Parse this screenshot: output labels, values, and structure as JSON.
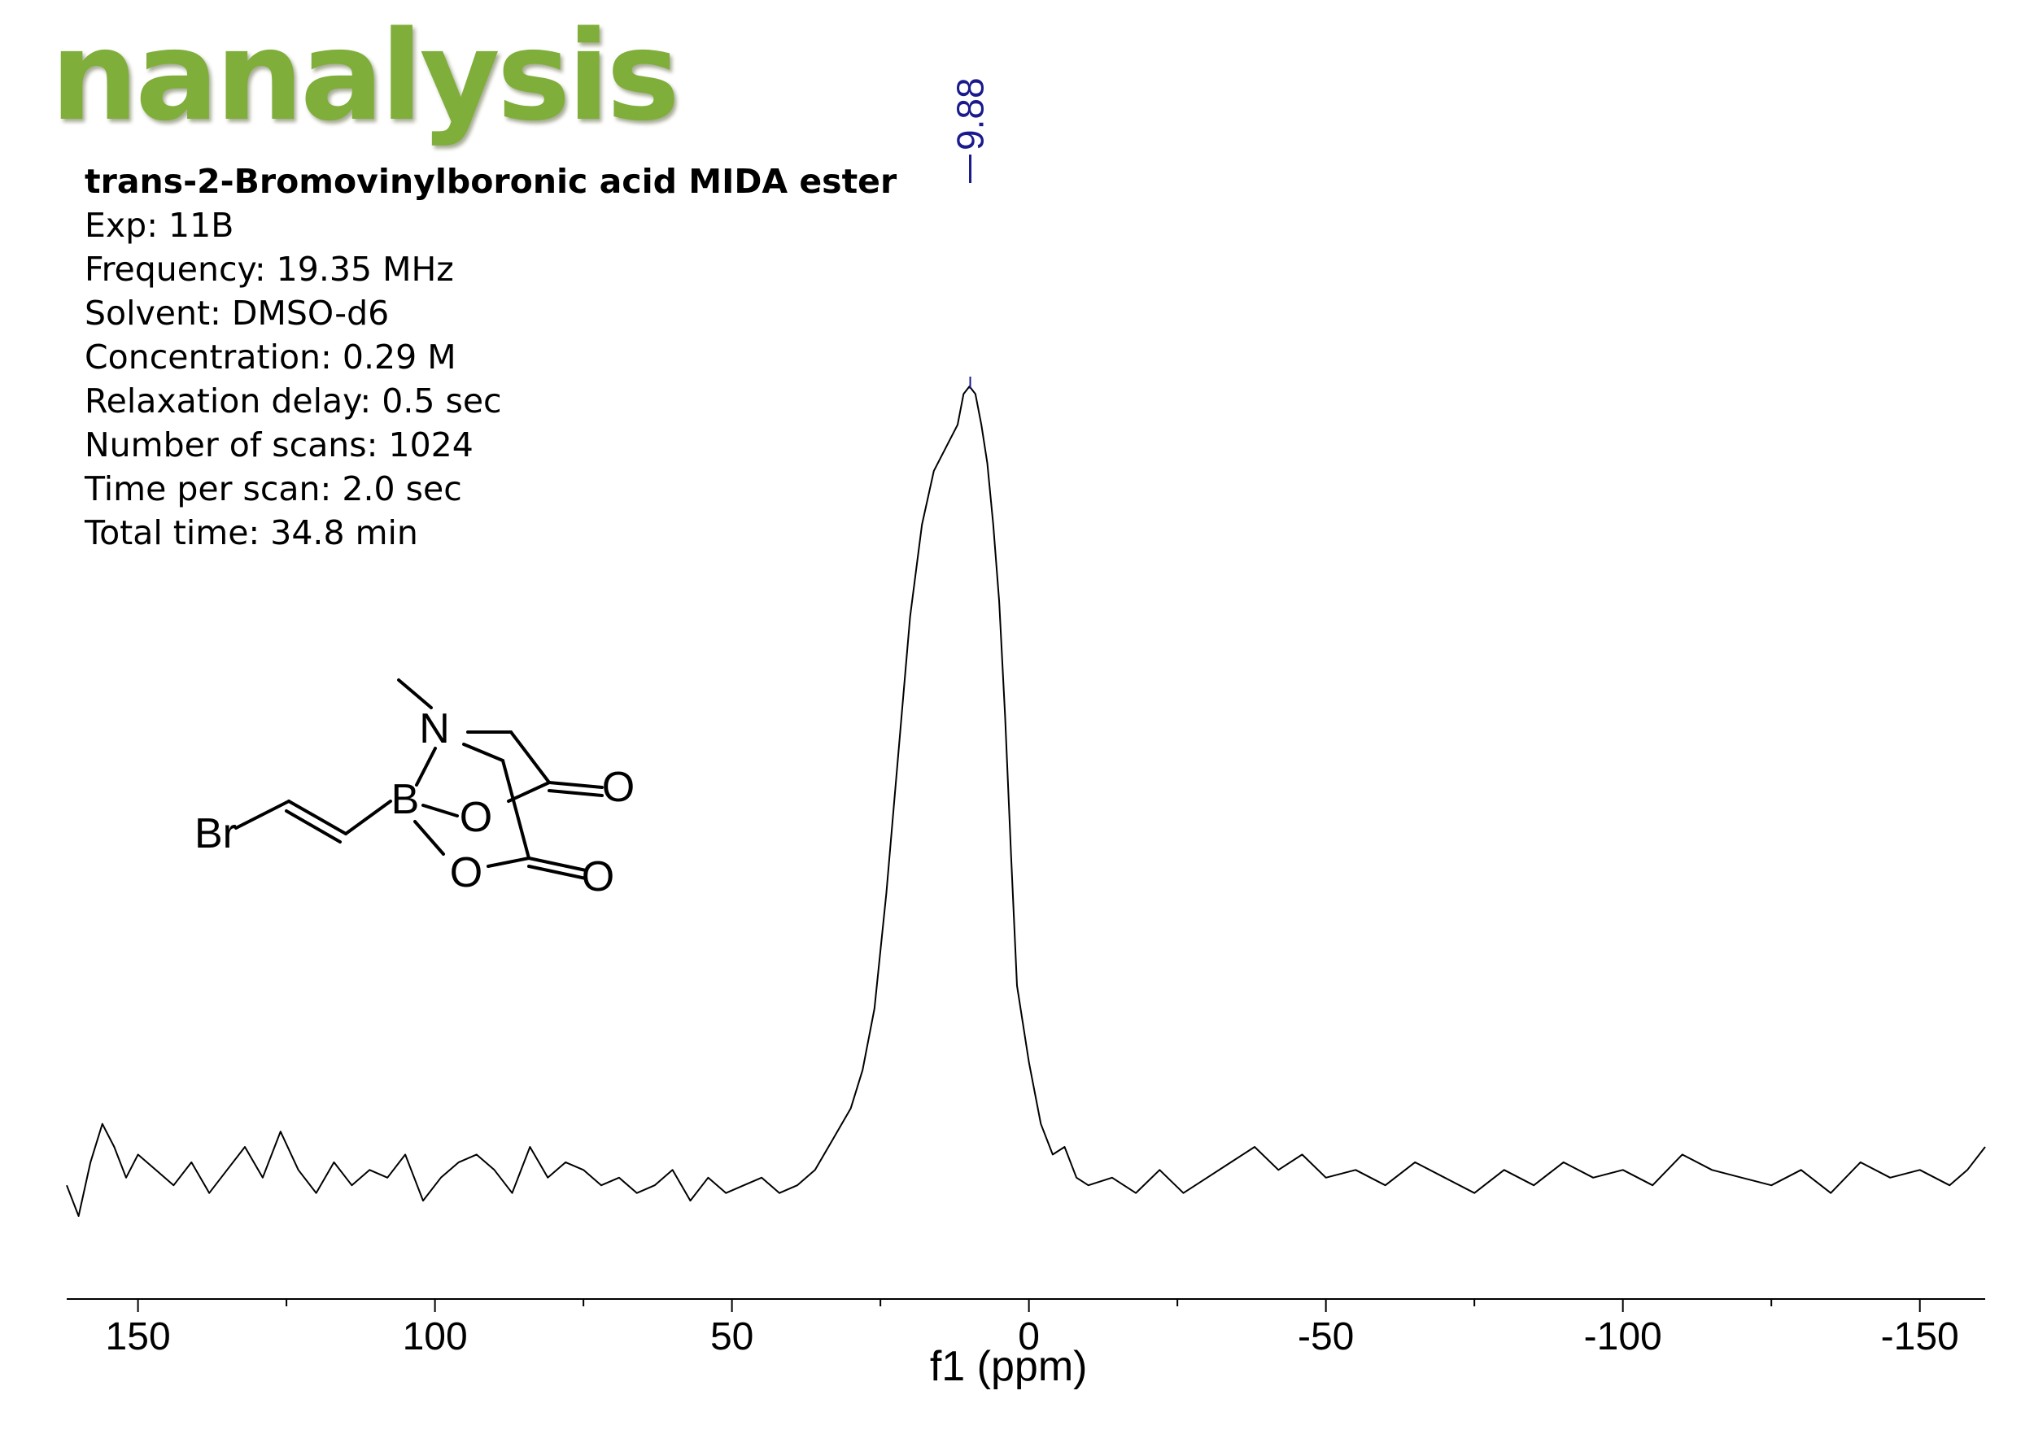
{
  "brand": {
    "logo_text": "nanalysis",
    "logo_color": "#7fae3a"
  },
  "sample": {
    "title": "trans-2-Bromovinylboronic acid MIDA ester",
    "params": [
      "Exp: 11B",
      "Frequency: 19.35 MHz",
      "Solvent: DMSO-d6",
      "Concentration: 0.29 M",
      "Relaxation delay: 0.5 sec",
      "Number of scans: 1024",
      "Time per scan:  2.0 sec",
      "Total time: 34.8 min"
    ]
  },
  "structure": {
    "atoms": [
      "N",
      "B",
      "O",
      "O",
      "O",
      "O",
      "Br"
    ]
  },
  "chart_data": {
    "type": "line",
    "title": "",
    "xlabel": "f1 (ppm)",
    "ylabel": "",
    "x_reversed": true,
    "xlim": [
      162,
      -161
    ],
    "x_ticks": [
      150,
      100,
      50,
      0,
      -50,
      -100,
      -150
    ],
    "x_tick_labels": [
      "150",
      "100",
      "50",
      "0",
      "-50",
      "-100",
      "-150"
    ],
    "peak_labels": [
      {
        "x": 9.88,
        "label": "9.88",
        "color": "#1a1a8c"
      }
    ],
    "series": [
      {
        "color": "#000000",
        "x": [
          162,
          160,
          158,
          156,
          154,
          152,
          150,
          147,
          144,
          141,
          138,
          135,
          132,
          129,
          126,
          123,
          120,
          117,
          114,
          111,
          108,
          105,
          102,
          99,
          96,
          93,
          90,
          87,
          84,
          81,
          78,
          75,
          72,
          69,
          66,
          63,
          60,
          57,
          54,
          51,
          48,
          45,
          42,
          39,
          36,
          33,
          30,
          28,
          26,
          24,
          22,
          20,
          18,
          16,
          14,
          12,
          11,
          10,
          9,
          8,
          7,
          6,
          5,
          4,
          3,
          2,
          0,
          -2,
          -4,
          -6,
          -8,
          -10,
          -14,
          -18,
          -22,
          -26,
          -30,
          -34,
          -38,
          -42,
          -46,
          -50,
          -55,
          -60,
          -65,
          -70,
          -75,
          -80,
          -85,
          -90,
          -95,
          -100,
          -105,
          -110,
          -115,
          -120,
          -125,
          -130,
          -135,
          -140,
          -145,
          -150,
          -155,
          -158,
          -161
        ],
        "y": [
          0.04,
          0.0,
          0.07,
          0.12,
          0.09,
          0.05,
          0.08,
          0.06,
          0.04,
          0.07,
          0.03,
          0.06,
          0.09,
          0.05,
          0.11,
          0.06,
          0.03,
          0.07,
          0.04,
          0.06,
          0.05,
          0.08,
          0.02,
          0.05,
          0.07,
          0.08,
          0.06,
          0.03,
          0.09,
          0.05,
          0.07,
          0.06,
          0.04,
          0.05,
          0.03,
          0.04,
          0.06,
          0.02,
          0.05,
          0.03,
          0.04,
          0.05,
          0.03,
          0.04,
          0.06,
          0.1,
          0.14,
          0.19,
          0.27,
          0.42,
          0.6,
          0.78,
          0.9,
          0.97,
          1.0,
          1.03,
          1.07,
          1.08,
          1.07,
          1.03,
          0.98,
          0.9,
          0.8,
          0.65,
          0.47,
          0.3,
          0.2,
          0.12,
          0.08,
          0.09,
          0.05,
          0.04,
          0.05,
          0.03,
          0.06,
          0.03,
          0.05,
          0.07,
          0.09,
          0.06,
          0.08,
          0.05,
          0.06,
          0.04,
          0.07,
          0.05,
          0.03,
          0.06,
          0.04,
          0.07,
          0.05,
          0.06,
          0.04,
          0.08,
          0.06,
          0.05,
          0.04,
          0.06,
          0.03,
          0.07,
          0.05,
          0.06,
          0.04,
          0.06,
          0.09
        ]
      }
    ]
  }
}
